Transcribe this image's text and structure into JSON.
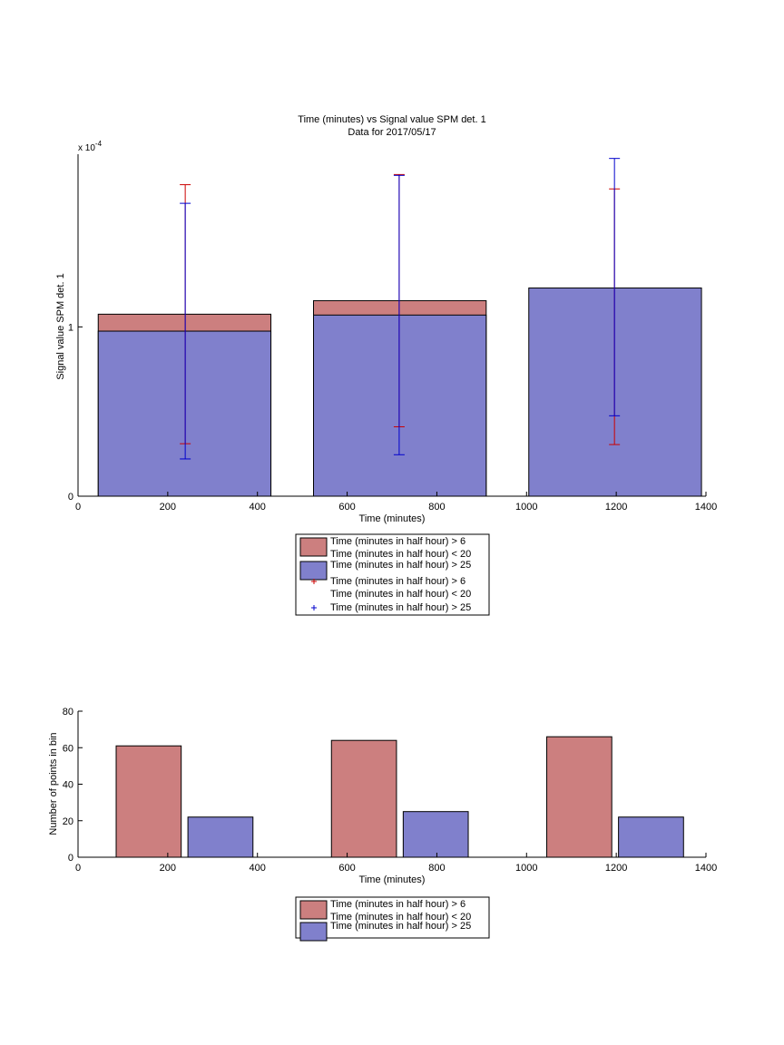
{
  "chart_data": [
    {
      "type": "bar",
      "title": "Time (minutes) vs Signal value SPM det. 1",
      "subtitle": "Data for 2017/05/17",
      "xlabel": "Time (minutes)",
      "ylabel": "Signal value SPM det. 1",
      "y_exponent_label": "x 10",
      "y_exponent_power": "-4",
      "xlim": [
        0,
        1400
      ],
      "ylim": [
        0,
        2.02
      ],
      "x_ticks": [
        0,
        200,
        400,
        600,
        800,
        1000,
        1200,
        1400
      ],
      "x_tick_labels": [
        "0",
        "200",
        "400",
        "600",
        "800",
        "1000",
        "1200",
        "1400"
      ],
      "y_ticks": [
        0,
        1
      ],
      "y_tick_labels": [
        "0",
        "1"
      ],
      "grid": false,
      "legend_placement": "below",
      "bars": [
        {
          "series": 0,
          "x0": 45,
          "x1": 430,
          "value": 1.075
        },
        {
          "series": 1,
          "x0": 45,
          "x1": 430,
          "value": 0.975
        },
        {
          "series": 0,
          "x0": 525,
          "x1": 910,
          "value": 1.155
        },
        {
          "series": 1,
          "x0": 525,
          "x1": 910,
          "value": 1.07
        },
        {
          "series": 1,
          "x0": 1005,
          "x1": 1390,
          "value": 1.23
        }
      ],
      "error_bars": [
        {
          "series": 0,
          "x": 239,
          "low": 0.31,
          "high": 1.84
        },
        {
          "series": 1,
          "x": 239,
          "low": 0.22,
          "high": 1.73
        },
        {
          "series": 0,
          "x": 716,
          "low": 0.41,
          "high": 1.9
        },
        {
          "series": 1,
          "x": 716,
          "low": 0.245,
          "high": 1.895
        },
        {
          "series": 0,
          "x": 1196,
          "low": 0.305,
          "high": 1.815
        },
        {
          "series": 1,
          "x": 1196,
          "low": 0.475,
          "high": 1.995
        }
      ],
      "series": [
        {
          "name_lines": [
            "Time (minutes in half hour) > 6",
            "Time (minutes in half hour) < 20"
          ],
          "color": "#cc7f7f",
          "error_color": "#cc0000"
        },
        {
          "name_lines": [
            "Time (minutes in half hour) > 25"
          ],
          "color": "#8080cc",
          "error_color": "#0000cc"
        }
      ],
      "legend": [
        {
          "kind": "patch",
          "series": 0,
          "lines": [
            "Time (minutes in half hour) > 6",
            "Time (minutes in half hour) < 20"
          ]
        },
        {
          "kind": "patch",
          "series": 1,
          "lines": [
            "Time (minutes in half hour) > 25"
          ]
        },
        {
          "kind": "marker",
          "series": 0,
          "lines": [
            "Time (minutes in half hour) > 6",
            "Time (minutes in half hour) < 20"
          ]
        },
        {
          "kind": "marker",
          "series": 1,
          "lines": [
            "Time (minutes in half hour) > 25"
          ]
        }
      ]
    },
    {
      "type": "bar",
      "title": "",
      "xlabel": "Time (minutes)",
      "ylabel": "Number of points in bin",
      "xlim": [
        0,
        1400
      ],
      "ylim": [
        0,
        80
      ],
      "x_ticks": [
        0,
        200,
        400,
        600,
        800,
        1000,
        1200,
        1400
      ],
      "x_tick_labels": [
        "0",
        "200",
        "400",
        "600",
        "800",
        "1000",
        "1200",
        "1400"
      ],
      "y_ticks": [
        0,
        20,
        40,
        60,
        80
      ],
      "y_tick_labels": [
        "0",
        "20",
        "40",
        "60",
        "80"
      ],
      "grid": false,
      "legend_placement": "below",
      "bars": [
        {
          "series": 0,
          "x0": 85,
          "x1": 230,
          "value": 61
        },
        {
          "series": 1,
          "x0": 245,
          "x1": 390,
          "value": 22
        },
        {
          "series": 0,
          "x0": 565,
          "x1": 710,
          "value": 64
        },
        {
          "series": 1,
          "x0": 725,
          "x1": 870,
          "value": 25
        },
        {
          "series": 0,
          "x0": 1045,
          "x1": 1190,
          "value": 66
        },
        {
          "series": 1,
          "x0": 1205,
          "x1": 1350,
          "value": 22
        }
      ],
      "series": [
        {
          "name_lines": [
            "Time (minutes in half hour) > 6",
            "Time (minutes in half hour) < 20"
          ],
          "color": "#cc7f7f"
        },
        {
          "name_lines": [
            "Time (minutes in half hour) > 25"
          ],
          "color": "#8080cc"
        }
      ],
      "legend": [
        {
          "kind": "patch",
          "series": 0,
          "lines": [
            "Time (minutes in half hour) > 6",
            "Time (minutes in half hour) < 20"
          ]
        },
        {
          "kind": "patch",
          "series": 1,
          "lines": [
            "Time (minutes in half hour) > 25"
          ]
        }
      ]
    }
  ]
}
